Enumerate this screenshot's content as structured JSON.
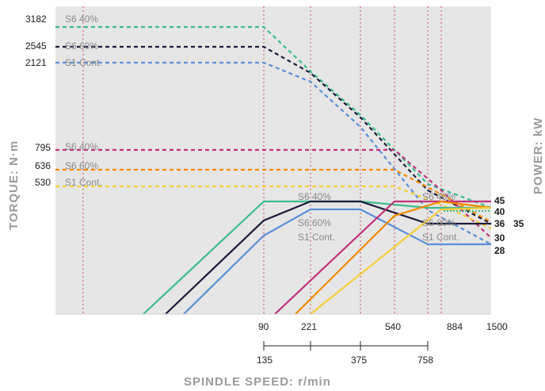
{
  "chart_data": {
    "type": "line",
    "title": "",
    "xlabel": "SPINDLE SPEED: r/min",
    "ylabel_left": "TORQUE: N·m",
    "ylabel_right": "POWER: kW",
    "x_ticks_top": [
      "90",
      "221",
      "540",
      "884",
      "1500"
    ],
    "x_ticks_bottom": [
      "135",
      "375",
      "758"
    ],
    "x_tick_values": [
      90,
      135,
      221,
      375,
      540,
      758,
      884,
      1500
    ],
    "torque_labels": [
      "3182",
      "2545",
      "2121",
      "795",
      "636",
      "530"
    ],
    "power_labels": [
      "45",
      "40",
      "36",
      "35",
      "30",
      "28"
    ],
    "curve_labels": {
      "s6_40": "S6 40%",
      "s6_60": "S6 60%",
      "s1": "S1 Cont."
    },
    "torque_series": [
      {
        "name": "S6 40%",
        "color": "#3dbb8f",
        "points": [
          [
            0,
            3182
          ],
          [
            90,
            3182
          ],
          [
            221,
            2850
          ],
          [
            375,
            2160
          ],
          [
            884,
            780
          ],
          [
            1500,
            520
          ]
        ]
      },
      {
        "name": "S6 60%",
        "color": "#1c1c3c",
        "points": [
          [
            0,
            2545
          ],
          [
            90,
            2545
          ],
          [
            221,
            2270
          ],
          [
            375,
            1740
          ],
          [
            884,
            620
          ],
          [
            1500,
            420
          ]
        ]
      },
      {
        "name": "S1 Cont.",
        "color": "#5a8fd8",
        "points": [
          [
            0,
            2121
          ],
          [
            90,
            2121
          ],
          [
            221,
            1890
          ],
          [
            375,
            1450
          ],
          [
            884,
            520
          ],
          [
            1500,
            340
          ]
        ]
      },
      {
        "name": "S6 40%",
        "color": "#c0317a",
        "points": [
          [
            0,
            795
          ],
          [
            540,
            795
          ],
          [
            884,
            580
          ],
          [
            1500,
            460
          ]
        ]
      },
      {
        "name": "S6 60%",
        "color": "#f08a00",
        "points": [
          [
            0,
            636
          ],
          [
            540,
            636
          ],
          [
            884,
            590
          ],
          [
            1500,
            360
          ]
        ]
      },
      {
        "name": "S1 Cont.",
        "color": "#f5cf3a",
        "points": [
          [
            0,
            530
          ],
          [
            540,
            530
          ],
          [
            884,
            560
          ],
          [
            1500,
            300
          ]
        ]
      }
    ],
    "power_series": [
      {
        "name": "S6 40%",
        "color": "#3dbb8f",
        "points": [
          [
            0,
            0
          ],
          [
            90,
            40
          ],
          [
            221,
            40
          ],
          [
            375,
            40
          ],
          [
            884,
            38
          ],
          [
            1500,
            40
          ]
        ]
      },
      {
        "name": "S6 60%",
        "color": "#1c1c3c",
        "points": [
          [
            0,
            0
          ],
          [
            90,
            36
          ],
          [
            221,
            40
          ],
          [
            375,
            40
          ],
          [
            758,
            36
          ],
          [
            1500,
            36
          ]
        ]
      },
      {
        "name": "S1 Cont.",
        "color": "#5a8fd8",
        "points": [
          [
            0,
            0
          ],
          [
            90,
            33
          ],
          [
            221,
            38
          ],
          [
            375,
            38
          ],
          [
            758,
            28
          ],
          [
            1500,
            28
          ]
        ]
      },
      {
        "name": "S6 40%",
        "color": "#c0317a",
        "points": [
          [
            0,
            0
          ],
          [
            540,
            45
          ],
          [
            1500,
            45
          ]
        ]
      },
      {
        "name": "S6 60%",
        "color": "#f08a00",
        "points": [
          [
            0,
            0
          ],
          [
            540,
            36
          ],
          [
            884,
            40
          ],
          [
            1500,
            40
          ]
        ]
      },
      {
        "name": "S1 Cont.",
        "color": "#f5cf3a",
        "points": [
          [
            0,
            0
          ],
          [
            758,
            40
          ],
          [
            1500,
            40
          ]
        ]
      }
    ],
    "grid": false,
    "background": "#e6e6e6"
  }
}
